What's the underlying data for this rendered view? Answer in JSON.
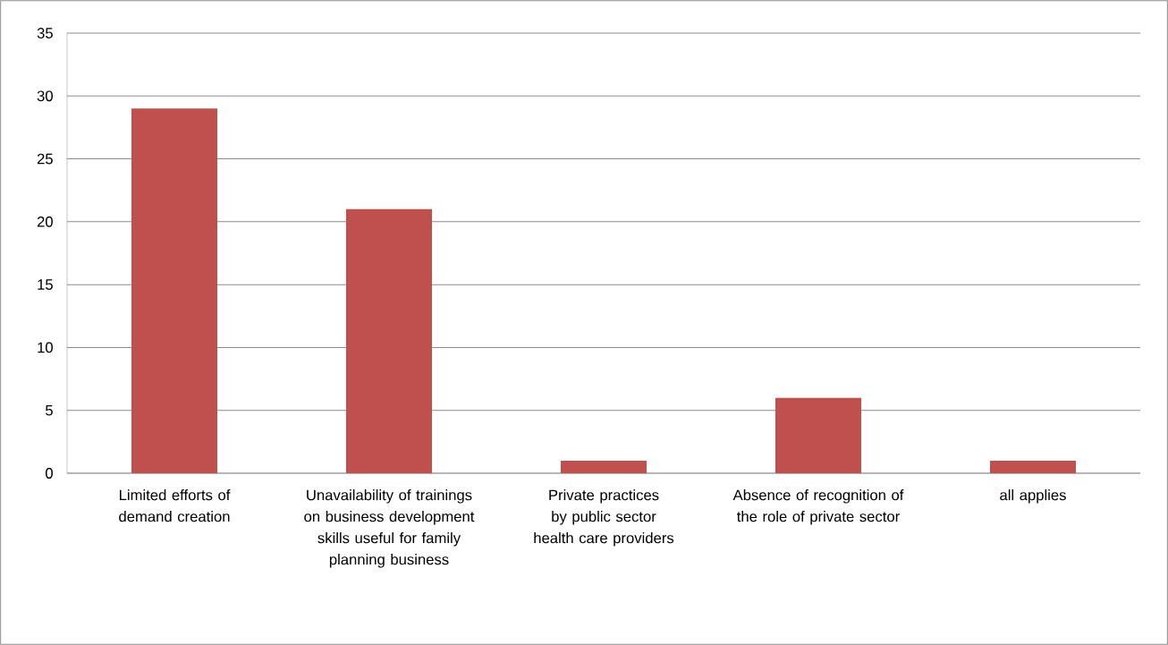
{
  "chart_data": {
    "type": "bar",
    "categories": [
      "Limited efforts of demand creation",
      "Unavailability of trainings on business development skills useful for family planning business",
      "Private practices by public sector health care providers",
      "Absence of recognition of the role of private sector",
      "all applies"
    ],
    "values": [
      29,
      21,
      1,
      6,
      1
    ],
    "color": "#c0504d",
    "ylim": [
      0,
      35
    ],
    "yticks": [
      0,
      5,
      10,
      15,
      20,
      25,
      30,
      35
    ],
    "grid": "y"
  }
}
